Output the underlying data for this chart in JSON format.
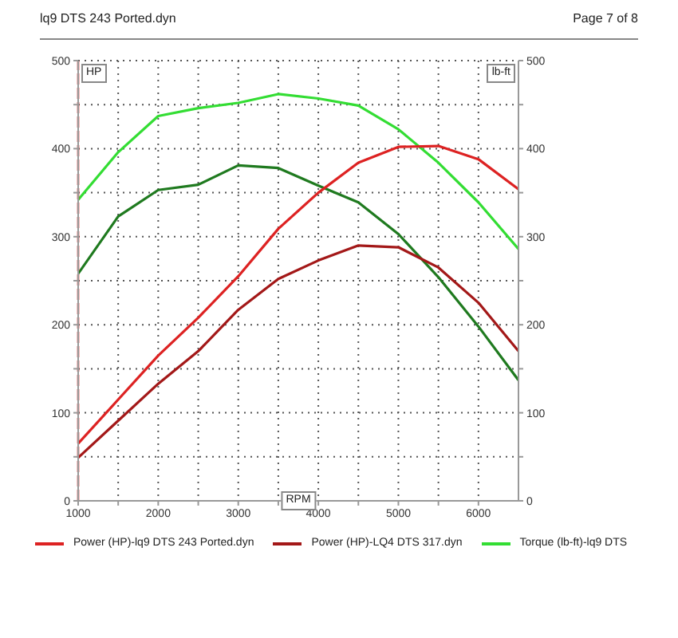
{
  "chart_data": {
    "type": "line",
    "title": "lq9 DTS 243 Ported.dyn",
    "annotations": [
      "Page 7 of 8"
    ],
    "xlabel": "RPM",
    "ylabel": "HP",
    "y2label": "lb-ft",
    "x": [
      1000,
      1500,
      2000,
      2500,
      3000,
      3500,
      4000,
      4500,
      5000,
      5500,
      6000,
      6500
    ],
    "series": [
      {
        "name": "Power (HP)-lq9 DTS 243 Ported.dyn",
        "color": "#dd2222",
        "values": [
          65,
          115,
          165,
          208,
          255,
          309,
          350,
          384,
          402,
          403,
          388,
          354
        ]
      },
      {
        "name": "Power (HP)-LQ4 DTS 317.dyn",
        "color": "#a31818",
        "values": [
          49,
          91,
          133,
          170,
          217,
          252,
          273,
          290,
          288,
          265,
          225,
          170
        ]
      },
      {
        "name": "Torque (lb-ft)-lq9 DTS",
        "color": "#33dd33",
        "axis": "y2",
        "values": [
          342,
          396,
          437,
          446,
          452,
          462,
          457,
          449,
          422,
          384,
          339,
          286
        ]
      },
      {
        "color": "#1f7a1f",
        "axis": "y2",
        "values": [
          258,
          323,
          353,
          359,
          381,
          378,
          358,
          339,
          303,
          254,
          198,
          137
        ]
      }
    ],
    "xlim": [
      1000,
      6500
    ],
    "xticks": [
      1000,
      {
        "value": 1500,
        "label": null
      },
      2000,
      {
        "value": 2500,
        "label": null
      },
      3000,
      {
        "value": 3500,
        "label": null
      },
      4000,
      {
        "value": 4500,
        "label": null
      },
      5000,
      {
        "value": 5500,
        "label": null
      },
      6000
    ],
    "ylim": [
      0,
      500
    ],
    "yticks": [
      0,
      {
        "value": 50,
        "label": null
      },
      100,
      {
        "value": 150,
        "label": null
      },
      200,
      {
        "value": 250,
        "label": null
      },
      300,
      {
        "value": 350,
        "label": null
      },
      400,
      {
        "value": 450,
        "label": null
      },
      500
    ],
    "y2lim": [
      0,
      500
    ],
    "y2ticks": [
      0,
      {
        "value": 50,
        "label": null
      },
      100,
      {
        "value": 150,
        "label": null
      },
      200,
      {
        "value": 250,
        "label": null
      },
      300,
      {
        "value": 350,
        "label": null
      },
      400,
      {
        "value": 450,
        "label": null
      },
      500
    ],
    "ref_lines": [
      {
        "axis": "x",
        "value": 1000,
        "color": "#dd2222",
        "line_style": "dashed"
      }
    ],
    "grid": true,
    "legend": "bottom",
    "marker": "none",
    "line_style": "solid"
  }
}
